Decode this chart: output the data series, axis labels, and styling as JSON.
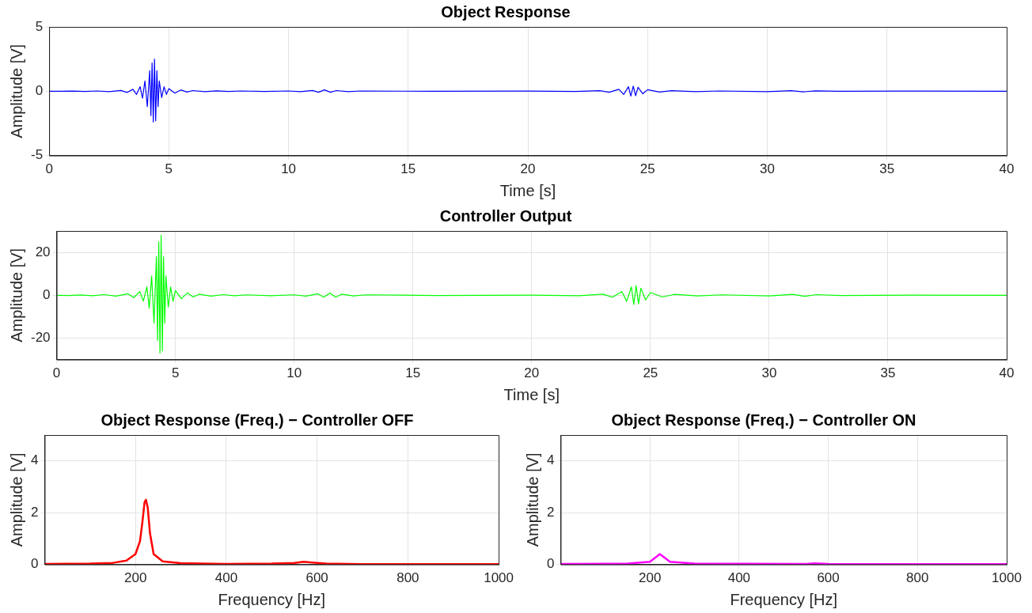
{
  "chart_data": [
    {
      "type": "line",
      "title": "Object Response",
      "xlabel": "Time [s]",
      "ylabel": "Amplitude [V]",
      "xlim": [
        0,
        40
      ],
      "xticks": [
        0,
        5,
        10,
        15,
        20,
        25,
        30,
        35,
        40
      ],
      "ylim": [
        -5,
        5
      ],
      "yticks": [
        -5,
        0,
        5
      ],
      "grid": true,
      "legend": false,
      "series": [
        {
          "color": "#0000ff",
          "x": [
            0,
            0.5,
            1,
            1.5,
            2,
            2.5,
            3,
            3.25,
            3.5,
            3.65,
            3.8,
            3.9,
            4.0,
            4.1,
            4.2,
            4.25,
            4.3,
            4.35,
            4.4,
            4.45,
            4.5,
            4.55,
            4.6,
            4.7,
            4.8,
            4.9,
            5.0,
            5.25,
            5.5,
            5.75,
            6,
            6.5,
            7,
            7.5,
            8,
            9,
            10,
            10.5,
            11,
            11.25,
            11.5,
            11.75,
            12,
            12.5,
            13,
            16,
            20,
            22,
            23,
            23.4,
            23.8,
            24,
            24.2,
            24.3,
            24.4,
            24.5,
            24.6,
            24.8,
            25,
            25.5,
            26,
            27,
            28,
            30,
            31,
            31.5,
            32,
            33,
            36,
            40
          ],
          "values": [
            0,
            -0.01,
            0.01,
            -0.015,
            0.02,
            -0.03,
            0.06,
            -0.1,
            0.15,
            -0.25,
            0.35,
            -0.55,
            0.8,
            -1.2,
            1.6,
            -1.9,
            2.2,
            -2.4,
            2.5,
            -2.3,
            1.6,
            -1.2,
            0.8,
            -0.5,
            0.35,
            -0.25,
            0.2,
            -0.15,
            0.1,
            -0.07,
            0.05,
            -0.04,
            0.03,
            -0.02,
            0.02,
            -0.02,
            0.02,
            -0.04,
            0.06,
            -0.08,
            0.1,
            -0.08,
            0.05,
            -0.03,
            0.02,
            -0.01,
            0.01,
            -0.02,
            0.04,
            -0.08,
            0.15,
            -0.25,
            0.35,
            -0.38,
            0.4,
            -0.35,
            0.3,
            -0.2,
            0.12,
            -0.07,
            0.04,
            -0.03,
            0.02,
            -0.03,
            0.04,
            -0.05,
            0.03,
            -0.01,
            0.01,
            0
          ]
        }
      ]
    },
    {
      "type": "line",
      "title": "Controller Output",
      "xlabel": "Time [s]",
      "ylabel": "Amplitude [V]",
      "xlim": [
        0,
        40
      ],
      "xticks": [
        0,
        5,
        10,
        15,
        20,
        25,
        30,
        35,
        40
      ],
      "ylim": [
        -30,
        30
      ],
      "yticks": [
        -20,
        0,
        20
      ],
      "grid": true,
      "legend": false,
      "series": [
        {
          "color": "#00ff00",
          "x": [
            0,
            0.5,
            1,
            1.5,
            2,
            2.5,
            3,
            3.25,
            3.5,
            3.65,
            3.8,
            3.9,
            4.0,
            4.1,
            4.2,
            4.25,
            4.3,
            4.35,
            4.4,
            4.45,
            4.5,
            4.55,
            4.6,
            4.7,
            4.8,
            4.9,
            5.0,
            5.25,
            5.5,
            5.75,
            6,
            6.5,
            7,
            7.5,
            8,
            9,
            10,
            10.5,
            11,
            11.25,
            11.5,
            11.75,
            12,
            12.5,
            13,
            16,
            20,
            22,
            23,
            23.4,
            23.8,
            24,
            24.2,
            24.3,
            24.4,
            24.5,
            24.6,
            24.8,
            25,
            25.5,
            26,
            27,
            28,
            30,
            31,
            31.5,
            32,
            33,
            36,
            40
          ],
          "values": [
            0,
            -0.1,
            0.15,
            -0.2,
            0.3,
            -0.4,
            0.7,
            -1.1,
            1.7,
            -2.7,
            3.9,
            -6,
            9,
            -13,
            18,
            -21,
            25,
            -27,
            28,
            -26,
            18,
            -13,
            9,
            -5.5,
            3.9,
            -2.8,
            2.2,
            -1.6,
            1.1,
            -0.8,
            0.5,
            -0.4,
            0.3,
            -0.2,
            0.2,
            -0.2,
            0.2,
            -0.4,
            0.7,
            -0.9,
            1,
            -0.9,
            0.5,
            -0.3,
            0.2,
            -0.1,
            0.1,
            -0.2,
            0.5,
            -0.9,
            1.7,
            -2.8,
            3.9,
            -4.3,
            4.5,
            -4,
            3.3,
            -2.2,
            1.3,
            -0.8,
            0.4,
            -0.3,
            0.2,
            -0.3,
            0.4,
            -0.5,
            0.3,
            -0.1,
            0.1,
            0
          ]
        }
      ]
    },
    {
      "type": "line",
      "title": "Object Response (Freq.) − Controller OFF",
      "xlabel": "Frequency [Hz]",
      "ylabel": "Amplitude [V]",
      "xlim": [
        0,
        1000
      ],
      "xticks": [
        200,
        400,
        600,
        800,
        1000
      ],
      "ylim": [
        0,
        5
      ],
      "yticks": [
        0,
        2,
        4
      ],
      "grid": true,
      "legend": false,
      "series": [
        {
          "color": "#ff0000",
          "x": [
            0,
            100,
            150,
            180,
            200,
            210,
            215,
            220,
            223,
            227,
            232,
            240,
            260,
            300,
            400,
            500,
            550,
            570,
            590,
            620,
            700,
            1000
          ],
          "values": [
            0.02,
            0.03,
            0.06,
            0.15,
            0.4,
            0.9,
            1.6,
            2.4,
            2.5,
            2.2,
            1.2,
            0.4,
            0.12,
            0.05,
            0.02,
            0.03,
            0.06,
            0.1,
            0.07,
            0.03,
            0.01,
            0.01
          ]
        }
      ]
    },
    {
      "type": "line",
      "title": "Object Response (Freq.) − Controller ON",
      "xlabel": "Frequency [Hz]",
      "ylabel": "Amplitude [V]",
      "xlim": [
        0,
        1000
      ],
      "xticks": [
        200,
        400,
        600,
        800,
        1000
      ],
      "ylim": [
        0,
        5
      ],
      "yticks": [
        0,
        2,
        4
      ],
      "grid": true,
      "legend": false,
      "series": [
        {
          "color": "#ff00ff",
          "x": [
            0,
            150,
            200,
            215,
            222,
            230,
            245,
            300,
            550,
            570,
            600,
            1000
          ],
          "values": [
            0.02,
            0.03,
            0.1,
            0.3,
            0.4,
            0.3,
            0.1,
            0.03,
            0.02,
            0.04,
            0.02,
            0.01
          ]
        }
      ]
    }
  ]
}
